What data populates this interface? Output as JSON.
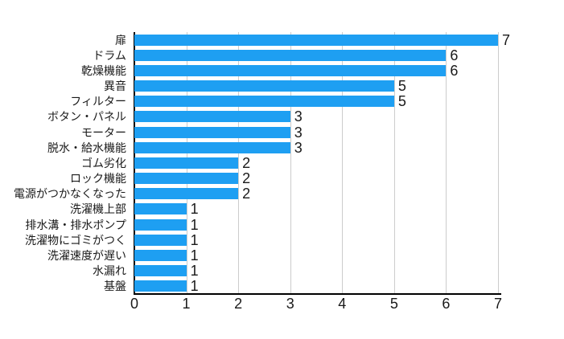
{
  "chart_data": {
    "type": "bar",
    "orientation": "horizontal",
    "title": "",
    "xlabel": "",
    "ylabel": "",
    "categories": [
      "扉",
      "ドラム",
      "乾燥機能",
      "異音",
      "フィルター",
      "ボタン・パネル",
      "モーター",
      "脱水・給水機能",
      "ゴム劣化",
      "ロック機能",
      "電源がつかなくなった",
      "洗濯機上部",
      "排水溝・排水ポンプ",
      "洗濯物にゴミがつく",
      "洗濯速度が遅い",
      "水漏れ",
      "基盤"
    ],
    "values": [
      7,
      6,
      6,
      5,
      5,
      3,
      3,
      3,
      2,
      2,
      2,
      1,
      1,
      1,
      1,
      1,
      1
    ],
    "data_labels": [
      "7",
      "6",
      "6",
      "5",
      "5",
      "3",
      "3",
      "3",
      "2",
      "2",
      "2",
      "1",
      "1",
      "1",
      "1",
      "1",
      "1"
    ],
    "xlim": [
      0,
      7
    ],
    "x_ticks": [
      "0",
      "1",
      "2",
      "3",
      "4",
      "5",
      "6",
      "7"
    ],
    "grid": "vertical",
    "legend": "none",
    "colors": {
      "bar": "#1e9ff2",
      "gridline": "#cccccc",
      "axis": "#000000",
      "text": "#1a1a1a",
      "background": "#ffffff"
    }
  }
}
